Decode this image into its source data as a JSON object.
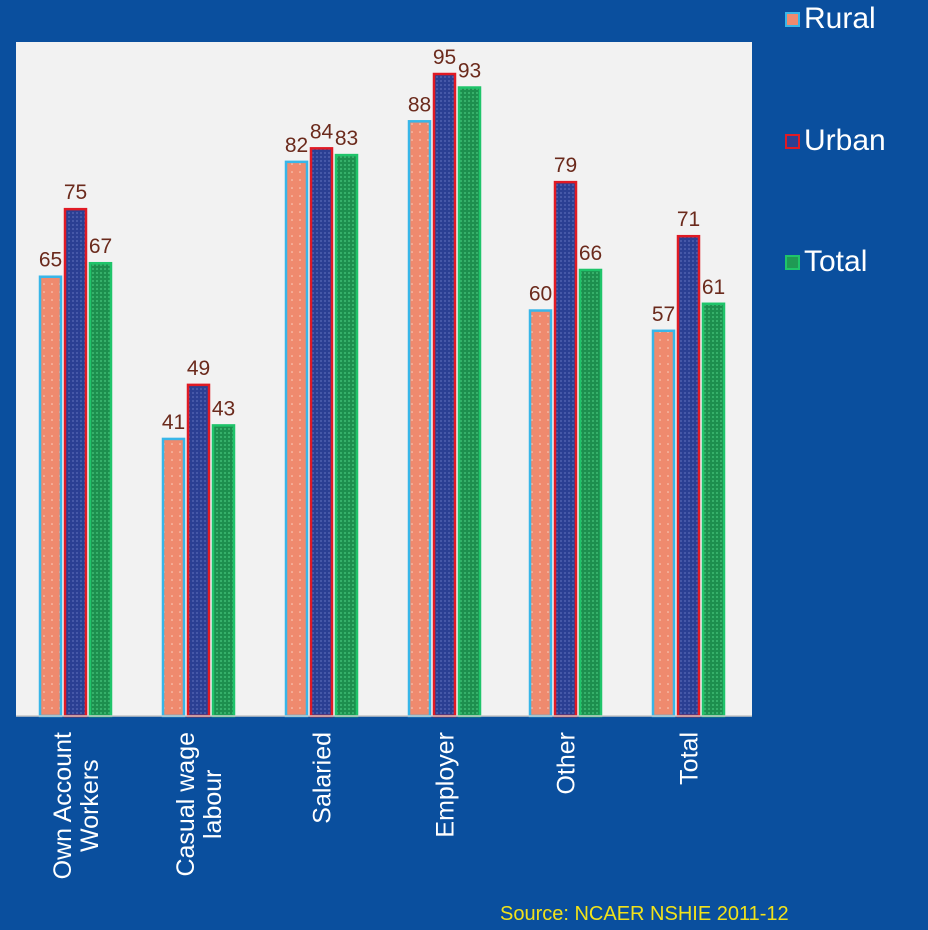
{
  "chart_data": {
    "type": "bar",
    "categories": [
      "Own Account Workers",
      "Casual wage labour",
      "Salaried",
      "Employer",
      "Other",
      "Total"
    ],
    "category_lines": [
      [
        "Own Account",
        "Workers"
      ],
      [
        "Casual wage",
        "labour"
      ],
      [
        "Salaried"
      ],
      [
        "Employer"
      ],
      [
        "Other"
      ],
      [
        "Total"
      ]
    ],
    "series": [
      {
        "name": "Rural",
        "values": [
          65,
          41,
          82,
          88,
          60,
          57
        ],
        "fill": "#ef8a6e",
        "stroke": "#38b6e8"
      },
      {
        "name": "Urban",
        "values": [
          75,
          49,
          84,
          95,
          79,
          71
        ],
        "fill": "#2b3f93",
        "stroke": "#e01a24"
      },
      {
        "name": "Total",
        "values": [
          67,
          43,
          83,
          93,
          66,
          61
        ],
        "fill": "#1f9a54",
        "stroke": "#1fc46a"
      }
    ],
    "ylim": [
      0,
      95
    ],
    "grid": false,
    "legend_position": "top-right",
    "plot_background": "#f2f2f2",
    "label_color": "#6b2a1c",
    "tick_label_color": "#ffffff"
  },
  "legend": [
    {
      "label": "Rural",
      "fill": "#ef8a6e",
      "stroke": "#38b6e8"
    },
    {
      "label": "Urban",
      "fill": "#2b3f93",
      "stroke": "#e01a24"
    },
    {
      "label": "Total",
      "fill": "#1f9a54",
      "stroke": "#1fc46a"
    }
  ],
  "source": "Source: NCAER NSHIE 2011-12",
  "colors": {
    "page_background": "#0a4f9e",
    "source_text": "#f2e21a"
  }
}
